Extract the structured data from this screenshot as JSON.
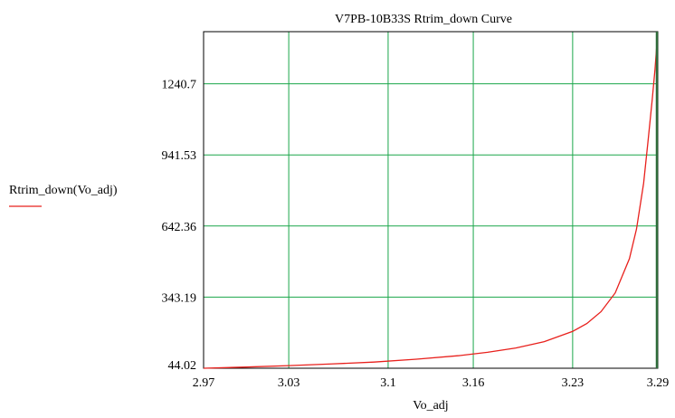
{
  "chart_data": {
    "type": "line",
    "title": "V7PB-10B33S Rtrim_down Curve",
    "xlabel": "Vo_adj",
    "ylabel": "Rtrim_down(Vo_adj)",
    "xlim": [
      2.97,
      3.29
    ],
    "ylim": [
      44.02,
      1460
    ],
    "x_ticks": [
      2.97,
      3.03,
      3.1,
      3.16,
      3.23,
      3.29
    ],
    "x_tick_labels": [
      "2.97",
      "3.03",
      "3.1",
      "3.16",
      "3.23",
      "3.29"
    ],
    "y_ticks": [
      44.02,
      343.19,
      642.36,
      941.53,
      1240.7
    ],
    "y_tick_labels": [
      "44.02",
      "343.19",
      "642.36",
      "941.53",
      "1240.7"
    ],
    "grid": true,
    "colors": {
      "line": "#e8201c",
      "grid": "#1aa64a",
      "axis": "#000000",
      "end_line": "#2e6b3a"
    },
    "series": [
      {
        "name": "Rtrim_down(Vo_adj)",
        "x": [
          2.97,
          3.0,
          3.03,
          3.06,
          3.09,
          3.12,
          3.15,
          3.17,
          3.19,
          3.21,
          3.23,
          3.24,
          3.25,
          3.26,
          3.27,
          3.275,
          3.28,
          3.283,
          3.286,
          3.288,
          3.2895
        ],
        "y": [
          44.02,
          49,
          55,
          62,
          70,
          82,
          97,
          111,
          129,
          156,
          199,
          232,
          282,
          361,
          505,
          630,
          822,
          993,
          1170,
          1300,
          1420
        ]
      }
    ]
  }
}
